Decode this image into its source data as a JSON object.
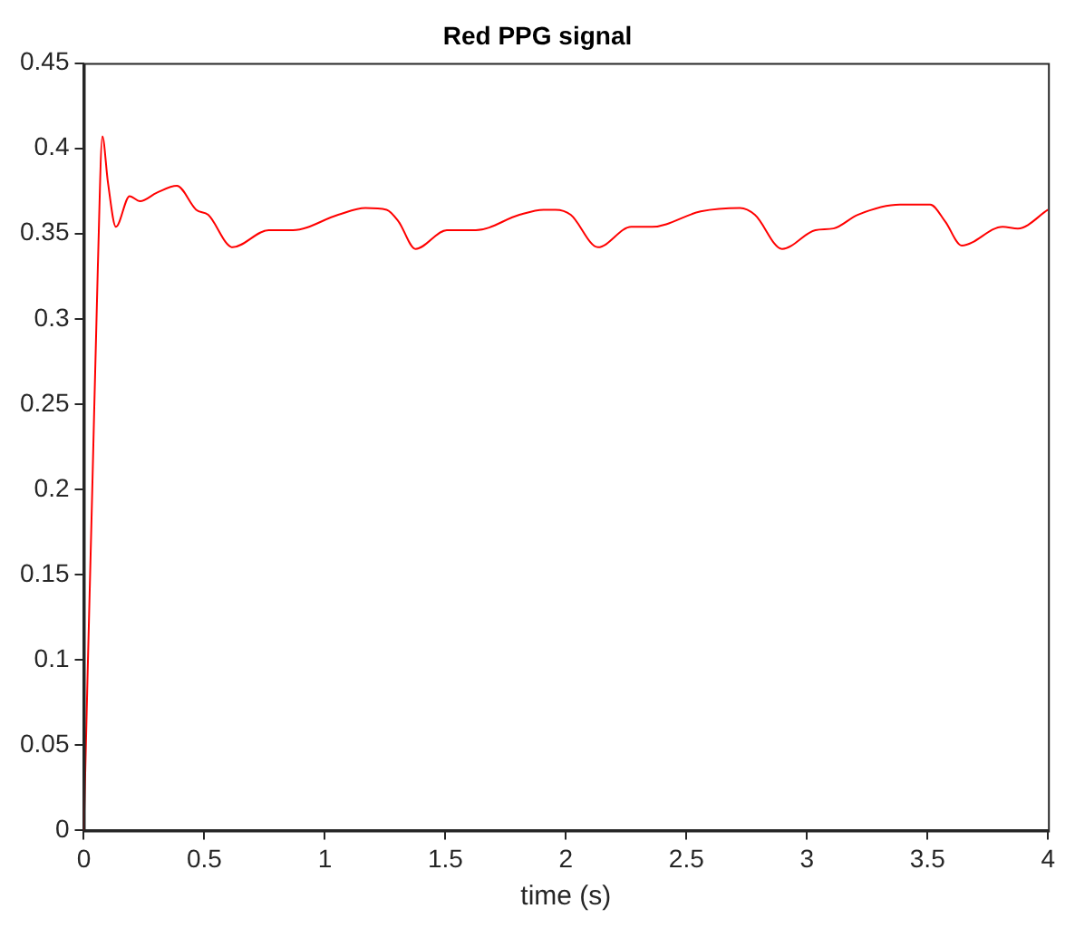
{
  "chart_data": {
    "type": "line",
    "title": "Red PPG signal",
    "xlabel": "time (s)",
    "xlim": [
      0,
      4
    ],
    "xticks": [
      0,
      0.5,
      1,
      1.5,
      2,
      2.5,
      3,
      3.5,
      4
    ],
    "ylim": [
      0,
      0.45
    ],
    "yticks": [
      0,
      0.05,
      0.1,
      0.15,
      0.2,
      0.25,
      0.3,
      0.35,
      0.4,
      0.45
    ],
    "grid": false,
    "legend": false,
    "series": [
      {
        "color": "#ff0000",
        "x": [
          0,
          0.015,
          0.035,
          0.058,
          0.077,
          0.1,
          0.133,
          0.19,
          0.233,
          0.303,
          0.386,
          0.466,
          0.516,
          0.617,
          0.767,
          0.867,
          1.055,
          1.168,
          1.256,
          1.306,
          1.376,
          1.506,
          1.626,
          1.807,
          1.907,
          1.957,
          2.02,
          2.133,
          2.271,
          2.358,
          2.559,
          2.722,
          2.784,
          2.897,
          3.035,
          3.11,
          3.21,
          3.386,
          3.511,
          3.574,
          3.642,
          3.812,
          3.875,
          4.0
        ],
        "values": [
          0,
          0.088,
          0.2,
          0.33,
          0.407,
          0.38,
          0.354,
          0.372,
          0.369,
          0.374,
          0.378,
          0.364,
          0.361,
          0.342,
          0.352,
          0.352,
          0.361,
          0.365,
          0.364,
          0.357,
          0.341,
          0.352,
          0.352,
          0.361,
          0.364,
          0.364,
          0.361,
          0.342,
          0.354,
          0.354,
          0.363,
          0.365,
          0.361,
          0.341,
          0.352,
          0.353,
          0.361,
          0.367,
          0.367,
          0.357,
          0.343,
          0.354,
          0.353,
          0.364
        ]
      }
    ]
  }
}
